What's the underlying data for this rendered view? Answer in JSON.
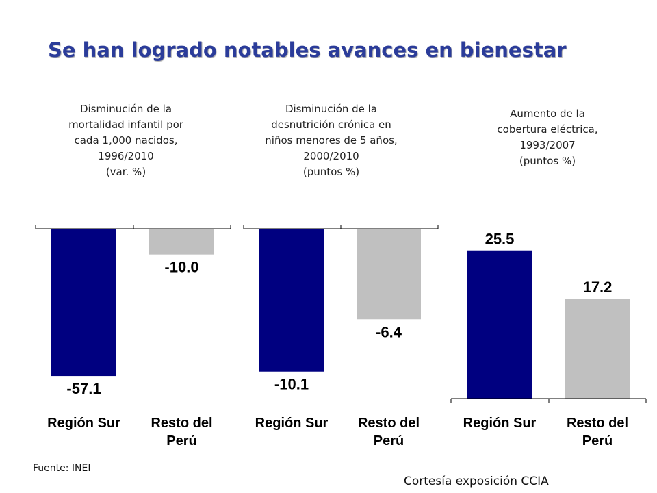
{
  "title": "Se han logrado notables avances en bienestar",
  "chart_data": [
    {
      "type": "bar",
      "title_lines": [
        "Disminución de la",
        "mortalidad infantil por",
        "cada 1,000 nacidos,",
        "1996/2010",
        "(var. %)"
      ],
      "categories": [
        [
          "Región Sur"
        ],
        [
          "Resto del",
          "Perú"
        ]
      ],
      "values": [
        -57.1,
        -10.0
      ],
      "value_labels": [
        "-57.1",
        "-10.0"
      ],
      "colors": [
        "#000080",
        "#c0c0c0"
      ],
      "ylim": [
        -60,
        0
      ]
    },
    {
      "type": "bar",
      "title_lines": [
        "Disminución de la",
        "desnutrición crónica en",
        "niños menores de 5 años,",
        "2000/2010",
        "(puntos %)"
      ],
      "categories": [
        [
          "Región Sur"
        ],
        [
          "Resto del",
          "Perú"
        ]
      ],
      "values": [
        -10.1,
        -6.4
      ],
      "value_labels": [
        "-10.1",
        "-6.4"
      ],
      "colors": [
        "#000080",
        "#c0c0c0"
      ],
      "ylim": [
        -10.5,
        0
      ]
    },
    {
      "type": "bar",
      "title_lines": [
        "Aumento de la",
        "cobertura eléctrica,",
        "1993/2007",
        "(puntos %)"
      ],
      "categories": [
        [
          "Región Sur"
        ],
        [
          "Resto del",
          "Perú"
        ]
      ],
      "values": [
        25.5,
        17.2
      ],
      "value_labels": [
        "25.5",
        "17.2"
      ],
      "colors": [
        "#000080",
        "#c0c0c0"
      ],
      "ylim": [
        0,
        27
      ]
    }
  ],
  "source": "Fuente: INEI",
  "courtesy": "Cortesía  exposición CCIA"
}
